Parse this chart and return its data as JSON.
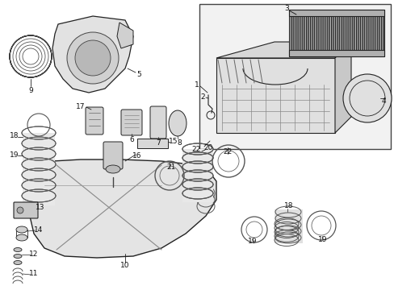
{
  "background_color": "#ffffff",
  "fig_width": 4.89,
  "fig_height": 3.6,
  "dpi": 100,
  "label_fontsize": 6.5,
  "lw_main": 0.9,
  "lw_thin": 0.6,
  "edge_color": "#222222",
  "fill_color": "#e8e8e8",
  "fill_dark": "#c8c8c8"
}
